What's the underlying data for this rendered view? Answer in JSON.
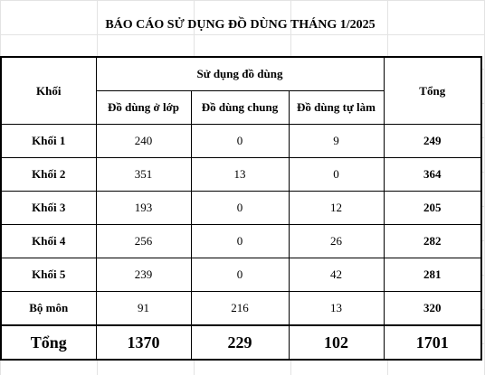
{
  "header": {
    "title": "BÁO CÁO SỬ DỤNG ĐỒ DÙNG THÁNG 1/2025"
  },
  "table": {
    "columns": {
      "group": "Khối",
      "usage": "Sử dụng đồ dùng",
      "sub": [
        "Đồ dùng ở lớp",
        "Đồ dùng chung",
        "Đồ dùng tự làm"
      ],
      "total": "Tổng"
    },
    "rows": [
      [
        "Khối 1",
        240,
        0,
        9,
        249
      ],
      [
        "Khối 2",
        351,
        13,
        0,
        364
      ],
      [
        "Khối 3",
        193,
        0,
        12,
        205
      ],
      [
        "Khối 4",
        256,
        0,
        26,
        282
      ],
      [
        "Khối 5",
        239,
        0,
        42,
        281
      ],
      [
        "Bộ môn",
        91,
        216,
        13,
        320
      ]
    ],
    "footer": [
      "Tổng",
      1370,
      229,
      102,
      1701
    ]
  }
}
